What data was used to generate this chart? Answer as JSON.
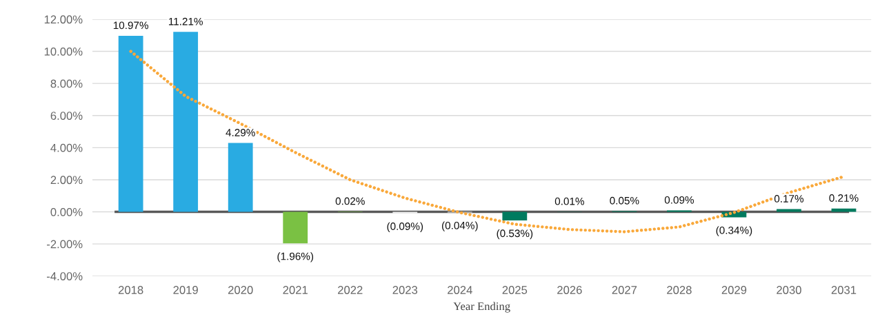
{
  "chart_data": {
    "type": "bar",
    "xlabel": "Year Ending",
    "categories": [
      "2018",
      "2019",
      "2020",
      "2021",
      "2022",
      "2023",
      "2024",
      "2025",
      "2026",
      "2027",
      "2028",
      "2029",
      "2030",
      "2031"
    ],
    "series": [
      {
        "values": [
          10.97,
          11.21,
          4.29,
          -1.96,
          0.02,
          -0.09,
          -0.04,
          -0.53,
          0.01,
          0.05,
          0.09,
          -0.34,
          0.17,
          0.21
        ],
        "colors": [
          "#29abe2",
          "#29abe2",
          "#29abe2",
          "#7ac143",
          "#7ac143",
          "#eeeeee",
          "#eeeeee",
          "#007b5f",
          "#007b5f",
          "#007b5f",
          "#007b5f",
          "#007b5f",
          "#007b5f",
          "#007b5f"
        ],
        "value_labels": [
          "10.97%",
          "11.21%",
          "4.29%",
          "(1.96%)",
          "0.02%",
          "(0.09%)",
          "(0.04%)",
          "(0.53%)",
          "0.01%",
          "0.05%",
          "0.09%",
          "(0.34%)",
          "0.17%",
          "0.21%"
        ]
      },
      {
        "type": "line",
        "color": "#f9a83a",
        "line_style": "dotted",
        "values": [
          10.0,
          7.2,
          5.5,
          3.7,
          2.0,
          0.86,
          -0.04,
          -0.77,
          -1.1,
          -1.24,
          -0.94,
          -0.04,
          1.2,
          2.2
        ]
      }
    ],
    "ylim": [
      -4,
      12
    ],
    "yticks": [
      {
        "value": -4,
        "label": "-4.00%"
      },
      {
        "value": -2,
        "label": "-2.00%"
      },
      {
        "value": 0,
        "label": "0.00%"
      },
      {
        "value": 2,
        "label": "2.00%"
      },
      {
        "value": 4,
        "label": "4.00%"
      },
      {
        "value": 6,
        "label": "6.00%"
      },
      {
        "value": 8,
        "label": "8.00%"
      },
      {
        "value": 10,
        "label": "10.00%"
      },
      {
        "value": 12,
        "label": "12.00%"
      }
    ],
    "ref_lines": [
      {
        "axis": "y",
        "value": 0,
        "color": "#595959"
      }
    ],
    "grid": "y",
    "legend": false
  }
}
